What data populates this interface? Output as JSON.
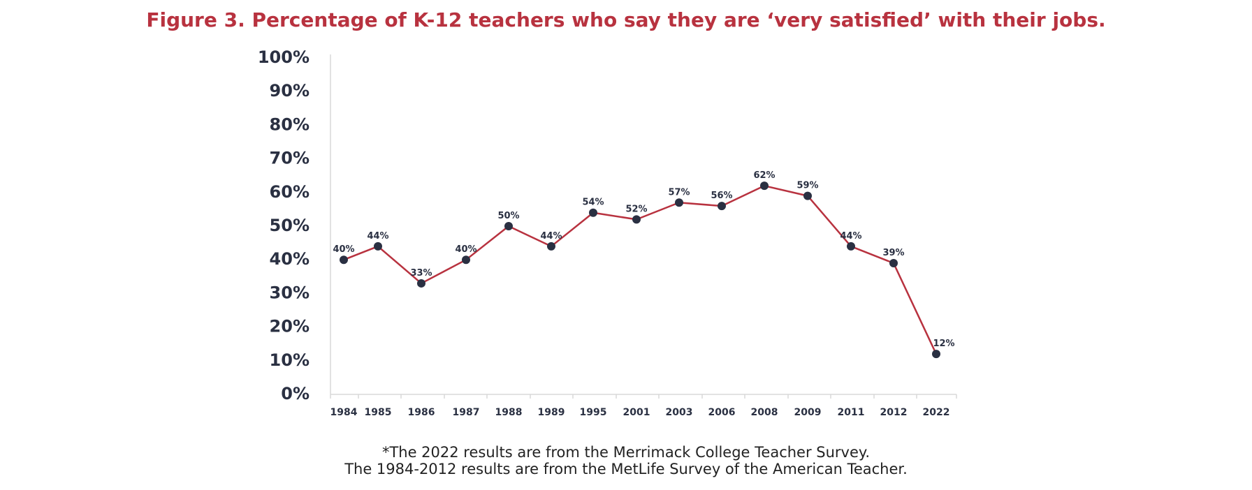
{
  "chart_data": {
    "type": "line",
    "title": "Figure 3. Percentage of K-12 teachers who say they are ‘very satisfied’ with their jobs.",
    "categories": [
      "1984",
      "1985",
      "1986",
      "1987",
      "1988",
      "1989",
      "1995",
      "2001",
      "2003",
      "2006",
      "2008",
      "2009",
      "2011",
      "2012",
      "2022"
    ],
    "series": [
      {
        "values": [
          40,
          44,
          33,
          40,
          50,
          44,
          54,
          52,
          57,
          56,
          62,
          59,
          44,
          39,
          12
        ],
        "data_labels": [
          "40%",
          "44%",
          "33%",
          "40%",
          "50%",
          "44%",
          "54%",
          "52%",
          "57%",
          "56%",
          "62%",
          "59%",
          "44%",
          "39%",
          "12%"
        ]
      }
    ],
    "yticks": [
      "0%",
      "10%",
      "20%",
      "30%",
      "40%",
      "50%",
      "60%",
      "70%",
      "80%",
      "90%",
      "100%"
    ],
    "ylim": [
      0,
      100
    ],
    "xlabel": "",
    "ylabel": "",
    "grid": false,
    "legend": "none",
    "colors": {
      "title": "#b8323f",
      "line": "#b8323f",
      "marker": "#2a3042",
      "text": "#2a3042",
      "axis": "#d9d9d9"
    }
  },
  "footnotes": [
    "*The 2022 results are from the Merrimack College Teacher Survey.",
    "The 1984-2012 results are from the MetLife Survey of the American Teacher."
  ]
}
